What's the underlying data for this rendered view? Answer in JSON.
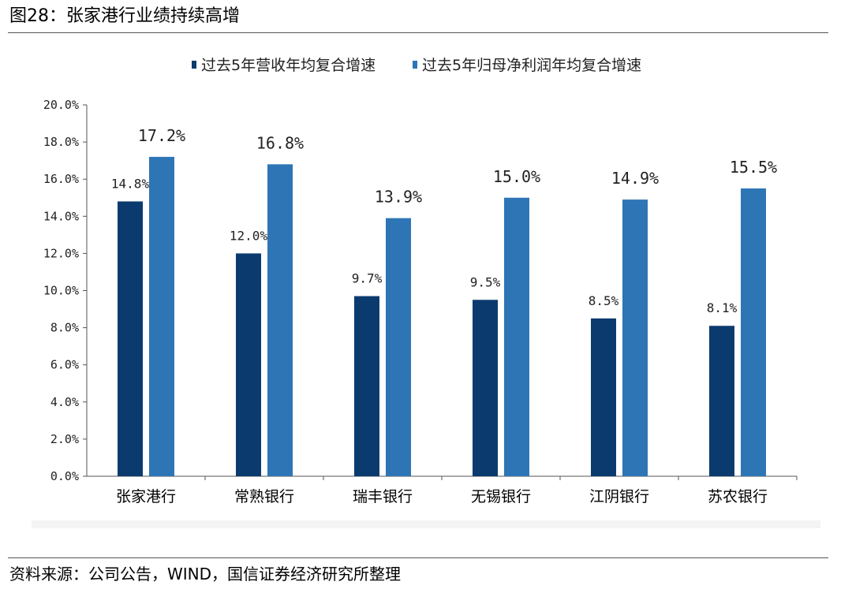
{
  "figure": {
    "title": "图28：张家港行业绩持续高增",
    "source": "资料来源：公司公告，WIND，国信证券经济研究所整理"
  },
  "colors": {
    "series1": "#0b3b6e",
    "series2": "#2e75b6",
    "axis": "#555555"
  },
  "chart_data": {
    "type": "bar",
    "categories": [
      "张家港行",
      "常熟银行",
      "瑞丰银行",
      "无锡银行",
      "江阴银行",
      "苏农银行"
    ],
    "series": [
      {
        "name": "过去5年营收年均复合增速",
        "values": [
          14.8,
          12.0,
          9.7,
          9.5,
          8.5,
          8.1
        ],
        "labels": [
          "14.8%",
          "12.0%",
          "9.7%",
          "9.5%",
          "8.5%",
          "8.1%"
        ]
      },
      {
        "name": "过去5年归母净利润年均复合增速",
        "values": [
          17.2,
          16.8,
          13.9,
          15.0,
          14.9,
          15.5
        ],
        "labels": [
          "17.2%",
          "16.8%",
          "13.9%",
          "15.0%",
          "14.9%",
          "15.5%"
        ]
      }
    ],
    "yticks": [
      "0.0%",
      "2.0%",
      "4.0%",
      "6.0%",
      "8.0%",
      "10.0%",
      "12.0%",
      "14.0%",
      "16.0%",
      "18.0%",
      "20.0%"
    ],
    "ylim": [
      0,
      20
    ],
    "legend": "top-center",
    "grid": false
  }
}
